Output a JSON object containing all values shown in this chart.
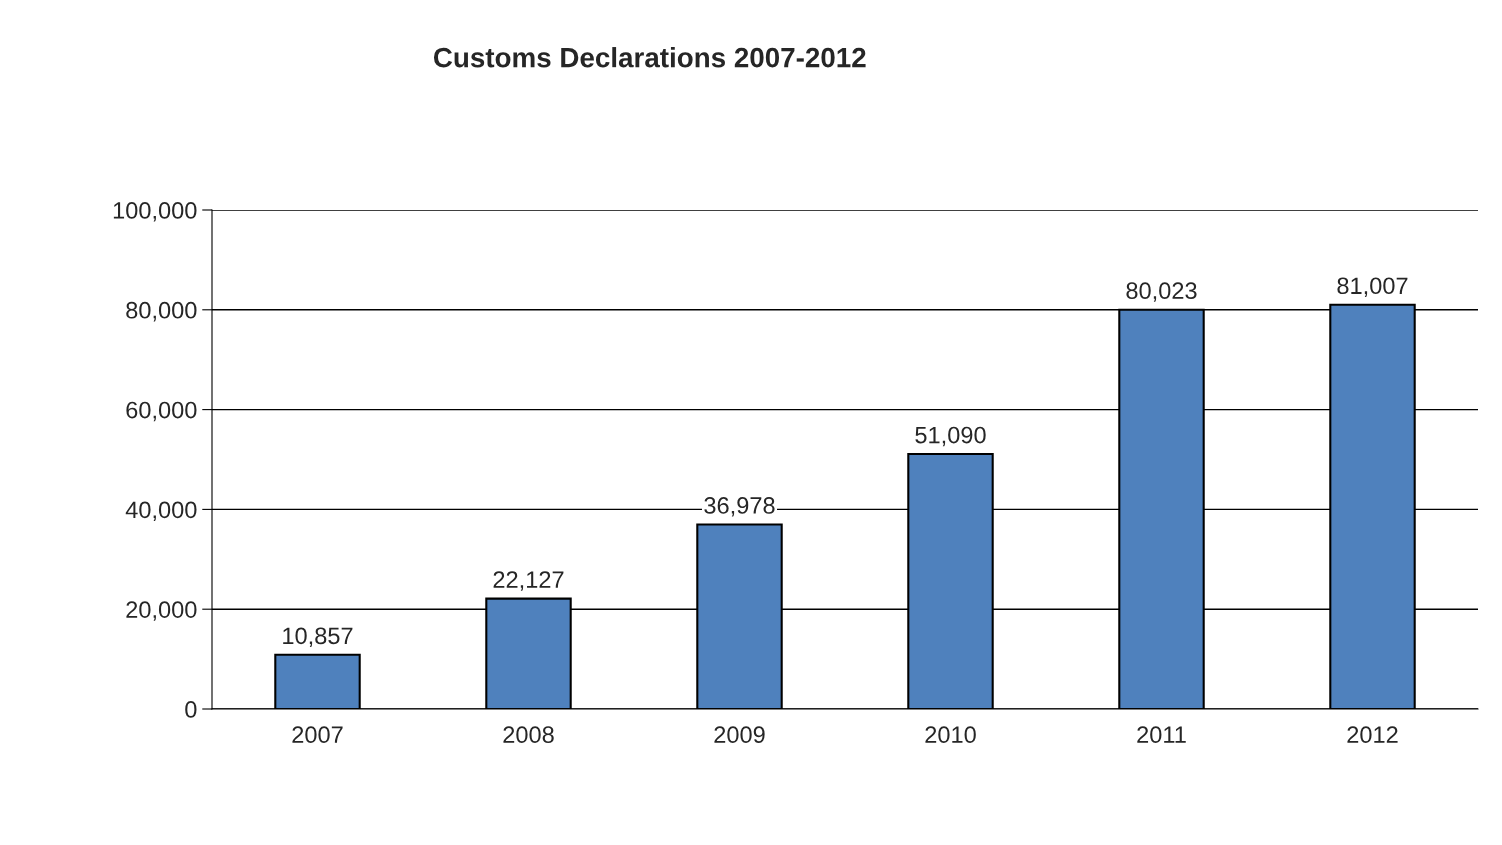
{
  "chart_data": {
    "type": "bar",
    "title": "Customs Declarations 2007-2012",
    "categories": [
      "2007",
      "2008",
      "2009",
      "2010",
      "2011",
      "2012"
    ],
    "values": [
      10857,
      22127,
      36978,
      51090,
      80023,
      81007
    ],
    "color": "#4f81bd",
    "ylim": [
      0,
      100000
    ],
    "yticks": [
      {
        "value": 0,
        "label": "0"
      },
      {
        "value": 20000,
        "label": "20,000"
      },
      {
        "value": 40000,
        "label": "40,000"
      },
      {
        "value": 60000,
        "label": "60,000"
      },
      {
        "value": 80000,
        "label": "80,000"
      },
      {
        "value": 100000,
        "label": "100,000"
      }
    ],
    "value_labels": [
      "10,857",
      "22,127",
      "36,978",
      "51,090",
      "80,023",
      "81,007"
    ],
    "grid": "y",
    "legend": false
  }
}
